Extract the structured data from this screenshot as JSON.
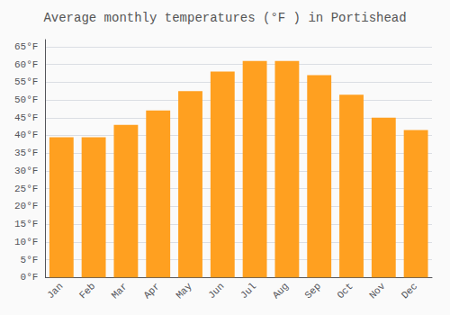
{
  "chart_data": {
    "type": "bar",
    "title": "Average monthly temperatures (°F ) in Portishead",
    "categories": [
      "Jan",
      "Feb",
      "Mar",
      "Apr",
      "May",
      "Jun",
      "Jul",
      "Aug",
      "Sep",
      "Oct",
      "Nov",
      "Dec"
    ],
    "values": [
      39.5,
      39.5,
      43.0,
      47.0,
      52.5,
      58.0,
      61.0,
      61.0,
      57.0,
      51.5,
      45.0,
      41.5
    ],
    "color": "#FFA020",
    "ylim": [
      0,
      67
    ],
    "yticks": [
      {
        "value": 0,
        "label": "0°F"
      },
      {
        "value": 5,
        "label": "5°F"
      },
      {
        "value": 10,
        "label": "10°F"
      },
      {
        "value": 15,
        "label": "15°F"
      },
      {
        "value": 20,
        "label": "20°F"
      },
      {
        "value": 25,
        "label": "25°F"
      },
      {
        "value": 30,
        "label": "30°F"
      },
      {
        "value": 35,
        "label": "35°F"
      },
      {
        "value": 40,
        "label": "40°F"
      },
      {
        "value": 45,
        "label": "45°F"
      },
      {
        "value": 50,
        "label": "50°F"
      },
      {
        "value": 55,
        "label": "55°F"
      },
      {
        "value": 60,
        "label": "60°F"
      },
      {
        "value": 65,
        "label": "65°F"
      }
    ],
    "grid": true
  }
}
